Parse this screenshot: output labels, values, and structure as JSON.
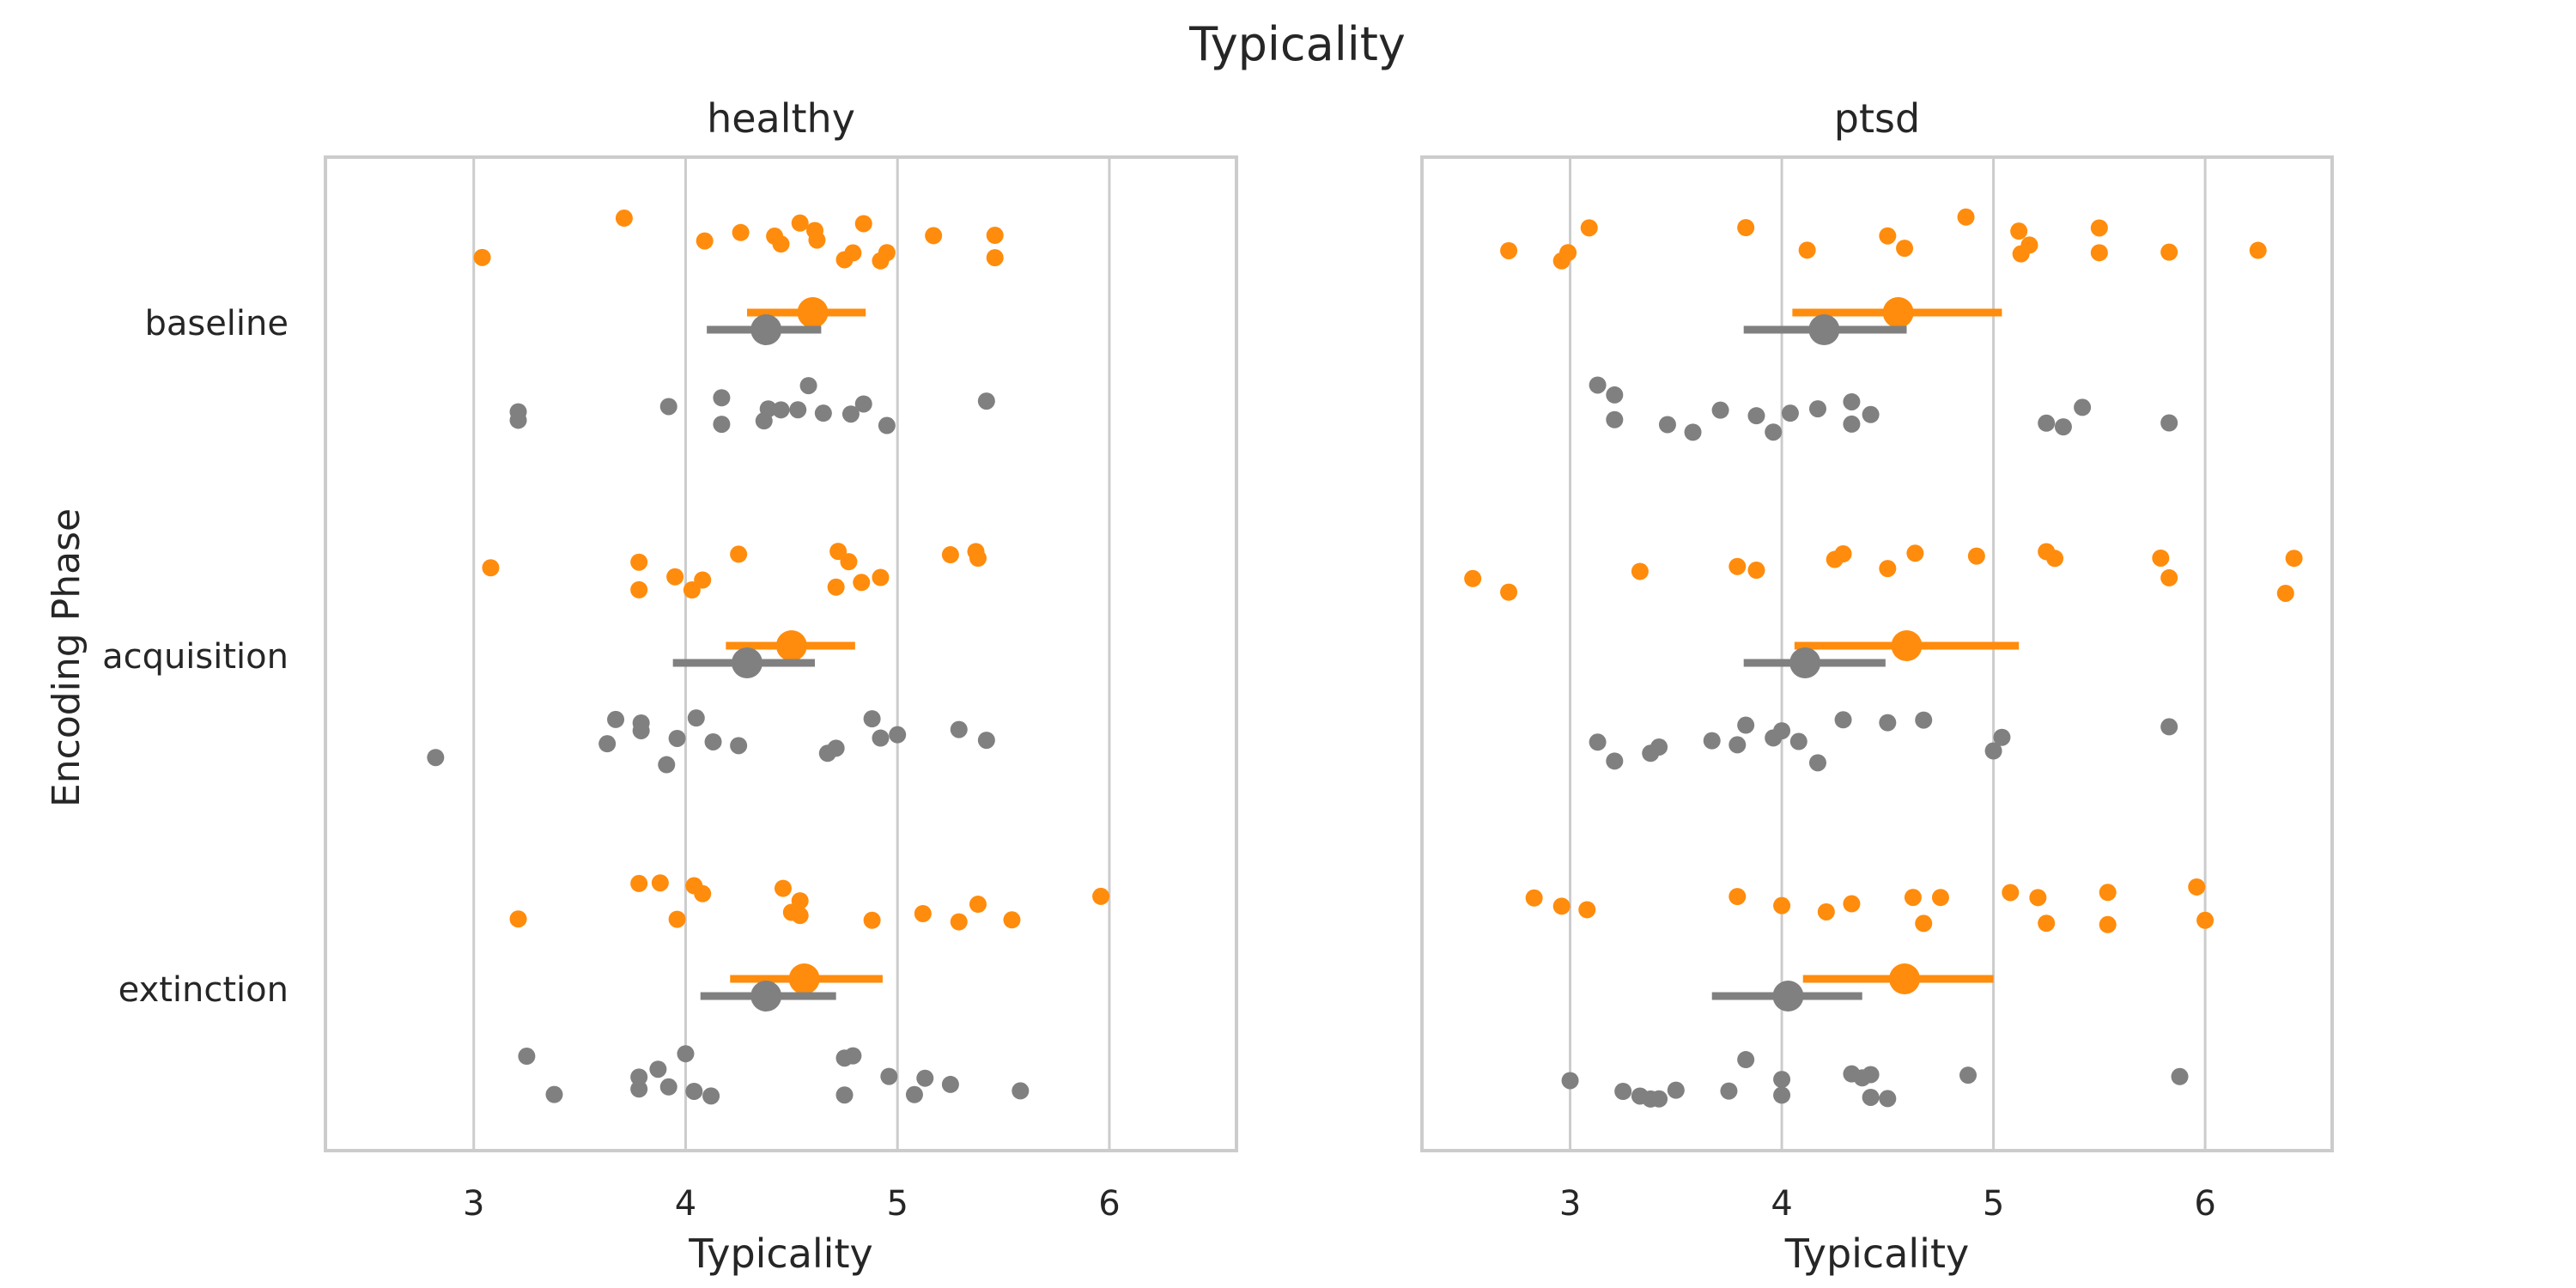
{
  "figure_title": "Typicality",
  "y_axis_label": "Encoding Phase",
  "colors": {
    "orange": "#ff8c0c",
    "gray": "#808080",
    "grid": "#cccccc",
    "frame": "#cccccc",
    "text": "#262626"
  },
  "chart_data": [
    {
      "type": "scatter",
      "title": "healthy",
      "xlabel": "Typicality",
      "ylabel": "Encoding Phase",
      "xlim": [
        2.3,
        6.6
      ],
      "xticks": [
        "3",
        "4",
        "5",
        "6"
      ],
      "categories": [
        "baseline",
        "acquisition",
        "extinction"
      ],
      "grid": "vertical",
      "groups": [
        {
          "category": "baseline",
          "orange": {
            "points": [
              3.04,
              3.71,
              4.09,
              4.26,
              4.42,
              4.45,
              4.54,
              4.61,
              4.62,
              4.75,
              4.79,
              4.84,
              4.92,
              4.95,
              5.17,
              5.46,
              5.46
            ],
            "mean": 4.6,
            "ci": [
              4.29,
              4.85
            ]
          },
          "gray": {
            "points": [
              3.21,
              3.21,
              3.92,
              4.17,
              4.17,
              4.37,
              4.39,
              4.45,
              4.53,
              4.58,
              4.65,
              4.78,
              4.84,
              4.95,
              5.42
            ],
            "mean": 4.38,
            "ci": [
              4.1,
              4.64
            ]
          }
        },
        {
          "category": "acquisition",
          "orange": {
            "points": [
              3.08,
              3.78,
              3.78,
              3.95,
              4.03,
              4.08,
              4.25,
              4.71,
              4.72,
              4.77,
              4.83,
              4.92,
              5.25,
              5.37,
              5.38
            ],
            "mean": 4.5,
            "ci": [
              4.19,
              4.8
            ]
          },
          "gray": {
            "points": [
              2.82,
              3.63,
              3.67,
              3.79,
              3.79,
              3.91,
              3.96,
              4.05,
              4.13,
              4.25,
              4.67,
              4.71,
              4.88,
              4.92,
              5.0,
              5.29,
              5.42
            ],
            "mean": 4.29,
            "ci": [
              3.94,
              4.61
            ]
          }
        },
        {
          "category": "extinction",
          "orange": {
            "points": [
              3.21,
              3.78,
              3.88,
              3.96,
              4.04,
              4.08,
              4.46,
              4.5,
              4.54,
              4.54,
              4.88,
              5.12,
              5.29,
              5.38,
              5.54,
              5.96
            ],
            "mean": 4.56,
            "ci": [
              4.21,
              4.93
            ]
          },
          "gray": {
            "points": [
              3.25,
              3.38,
              3.78,
              3.78,
              3.87,
              3.92,
              4.0,
              4.04,
              4.12,
              4.75,
              4.75,
              4.79,
              4.96,
              5.08,
              5.13,
              5.25,
              5.58
            ],
            "mean": 4.38,
            "ci": [
              4.07,
              4.71
            ]
          }
        }
      ]
    },
    {
      "type": "scatter",
      "title": "ptsd",
      "xlabel": "Typicality",
      "ylabel": "",
      "xlim": [
        2.3,
        6.6
      ],
      "xticks": [
        "3",
        "4",
        "5",
        "6"
      ],
      "categories": [
        "baseline",
        "acquisition",
        "extinction"
      ],
      "grid": "vertical",
      "groups": [
        {
          "category": "baseline",
          "orange": {
            "points": [
              2.71,
              2.96,
              2.99,
              3.09,
              3.83,
              4.12,
              4.5,
              4.58,
              4.87,
              5.12,
              5.13,
              5.17,
              5.5,
              5.5,
              5.83,
              6.25
            ],
            "mean": 4.55,
            "ci": [
              4.05,
              5.04
            ]
          },
          "gray": {
            "points": [
              3.13,
              3.21,
              3.21,
              3.46,
              3.58,
              3.71,
              3.88,
              3.96,
              4.04,
              4.17,
              4.33,
              4.33,
              4.42,
              5.25,
              5.33,
              5.42,
              5.83
            ],
            "mean": 4.2,
            "ci": [
              3.82,
              4.59
            ]
          }
        },
        {
          "category": "acquisition",
          "orange": {
            "points": [
              2.54,
              2.71,
              3.33,
              3.79,
              3.88,
              4.25,
              4.29,
              4.5,
              4.63,
              4.92,
              5.25,
              5.29,
              5.79,
              5.83,
              6.38,
              6.42
            ],
            "mean": 4.59,
            "ci": [
              4.06,
              5.12
            ]
          },
          "gray": {
            "points": [
              3.13,
              3.21,
              3.38,
              3.42,
              3.67,
              3.79,
              3.83,
              3.96,
              4.0,
              4.08,
              4.17,
              4.29,
              4.5,
              4.67,
              5.0,
              5.04,
              5.83
            ],
            "mean": 4.11,
            "ci": [
              3.82,
              4.49
            ]
          }
        },
        {
          "category": "extinction",
          "orange": {
            "points": [
              2.83,
              2.96,
              3.08,
              3.79,
              4.0,
              4.21,
              4.33,
              4.62,
              4.67,
              4.75,
              5.08,
              5.21,
              5.25,
              5.54,
              5.54,
              5.96,
              6.0
            ],
            "mean": 4.58,
            "ci": [
              4.1,
              5.0
            ]
          },
          "gray": {
            "points": [
              3.0,
              3.25,
              3.33,
              3.38,
              3.42,
              3.5,
              3.75,
              3.83,
              4.0,
              4.0,
              4.33,
              4.38,
              4.42,
              4.42,
              4.5,
              4.88,
              5.88
            ],
            "mean": 4.03,
            "ci": [
              3.67,
              4.38
            ]
          }
        }
      ]
    }
  ]
}
